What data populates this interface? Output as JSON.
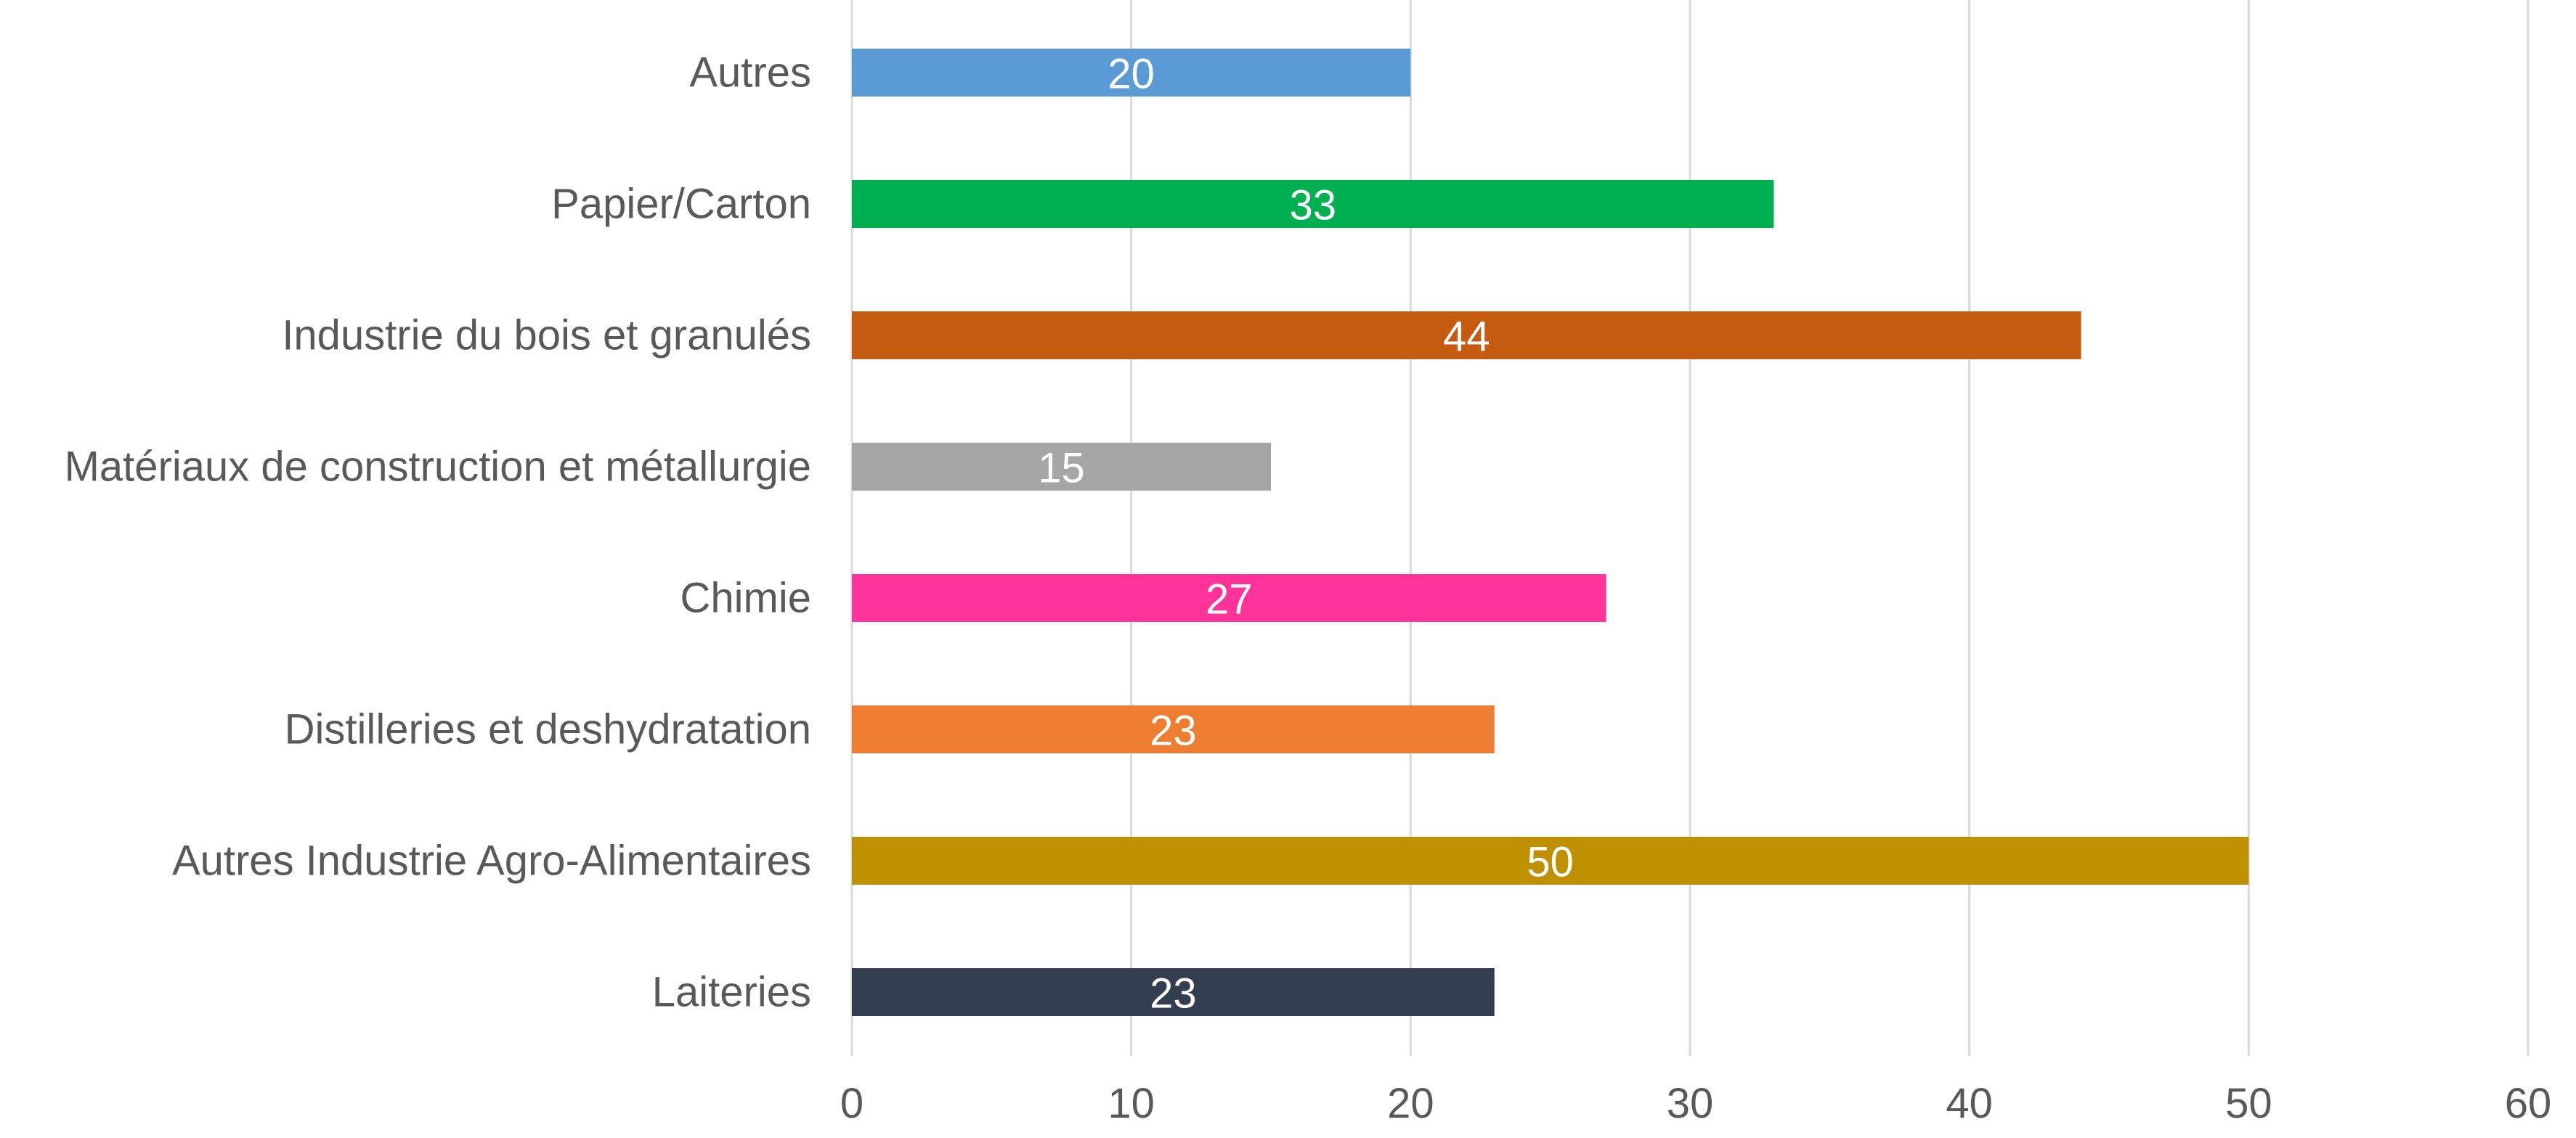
{
  "chart_data": {
    "type": "bar",
    "orientation": "horizontal",
    "title": "",
    "xlabel": "",
    "ylabel": "",
    "xlim": [
      0,
      60
    ],
    "ticks": [
      "0",
      "10",
      "20",
      "30",
      "40",
      "50",
      "60"
    ],
    "tick_values": [
      0,
      10,
      20,
      30,
      40,
      50,
      60
    ],
    "grid": true,
    "legend": "none",
    "categories": [
      "Autres",
      "Papier/Carton",
      "Industrie du bois et granulés",
      "Matériaux de construction et métallurgie",
      "Chimie",
      "Distilleries et deshydratation",
      "Autres Industrie Agro-Alimentaires",
      "Laiteries"
    ],
    "values": [
      20,
      33,
      44,
      15,
      27,
      23,
      50,
      23
    ],
    "data_labels": [
      "20",
      "33",
      "44",
      "15",
      "27",
      "23",
      "50",
      "23"
    ],
    "colors": [
      "#5b9bd5",
      "#00b050",
      "#c55a11",
      "#a5a5a5",
      "#ff3399",
      "#ed7d31",
      "#bf9000",
      "#333f50"
    ],
    "grid_color": "#d9d9d9",
    "label_color": "#595959",
    "data_label_color": "#ffffff"
  }
}
